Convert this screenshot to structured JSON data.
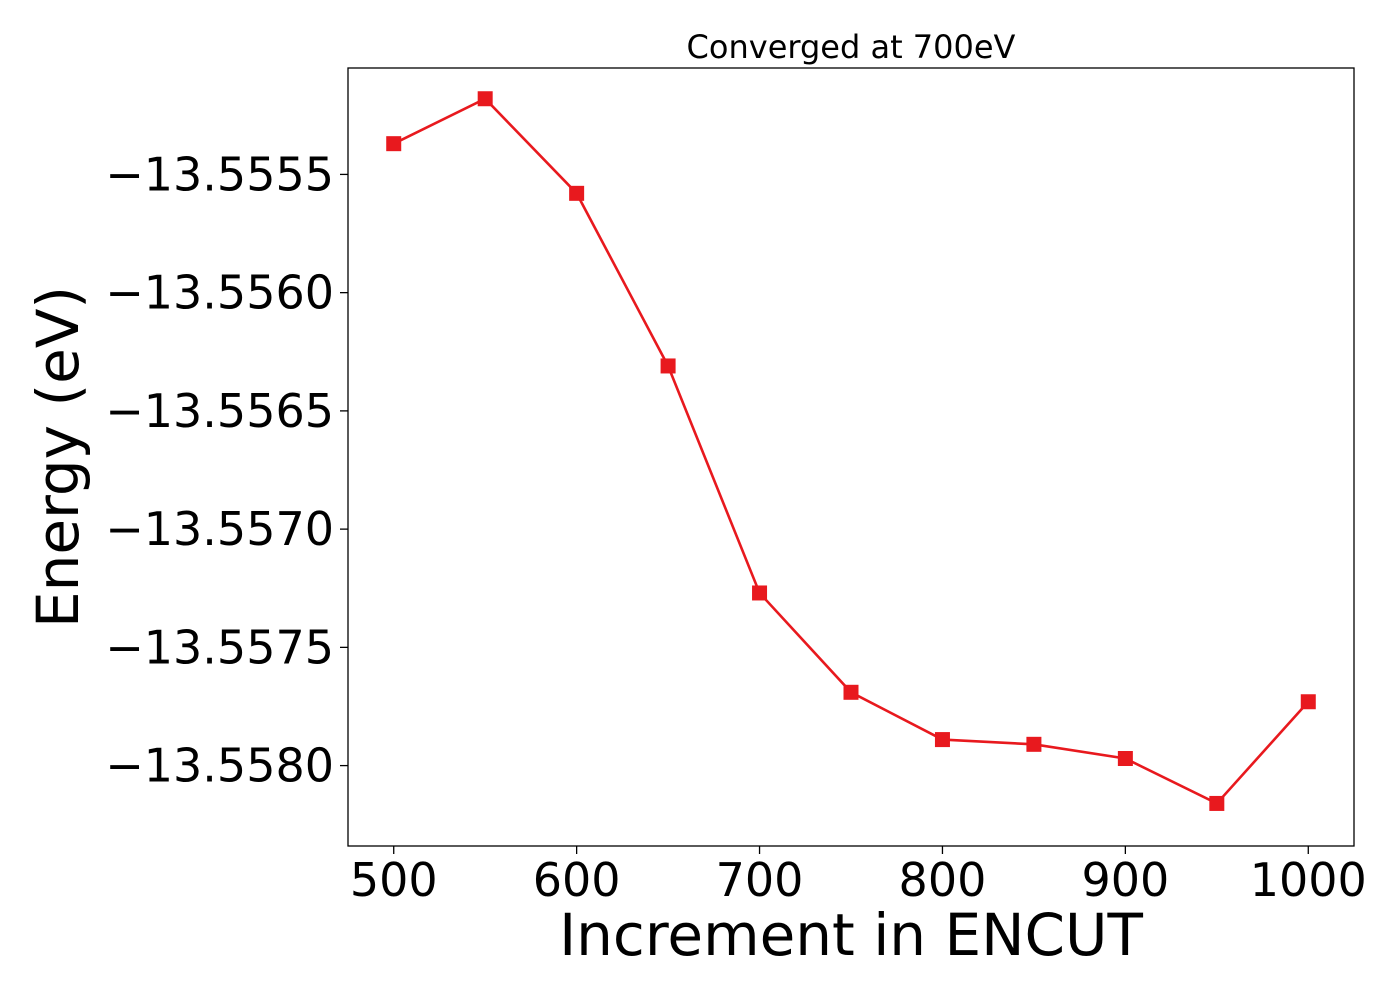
{
  "chart_data": {
    "type": "line",
    "title": "Converged at 700eV",
    "xlabel": "Increment in ENCUT",
    "ylabel": "Energy (eV)",
    "xlim": [
      475,
      1025
    ],
    "ylim": [
      -13.55834,
      -13.55505
    ],
    "xticks": [
      500,
      600,
      700,
      800,
      900,
      1000
    ],
    "xtick_labels": [
      "500",
      "600",
      "700",
      "800",
      "900",
      "1000"
    ],
    "yticks": [
      -13.5555,
      -13.556,
      -13.5565,
      -13.557,
      -13.5575,
      -13.558
    ],
    "ytick_labels": [
      "−13.5555",
      "−13.5560",
      "−13.5565",
      "−13.5570",
      "−13.5575",
      "−13.5580"
    ],
    "grid": false,
    "series": [
      {
        "color": "#e8191e",
        "marker": "square",
        "x": [
          500,
          550,
          600,
          650,
          700,
          750,
          800,
          850,
          900,
          950,
          1000
        ],
        "y": [
          -13.55537,
          -13.55518,
          -13.55558,
          -13.55631,
          -13.55727,
          -13.55769,
          -13.55789,
          -13.55791,
          -13.55797,
          -13.55816,
          -13.55773
        ]
      }
    ]
  }
}
